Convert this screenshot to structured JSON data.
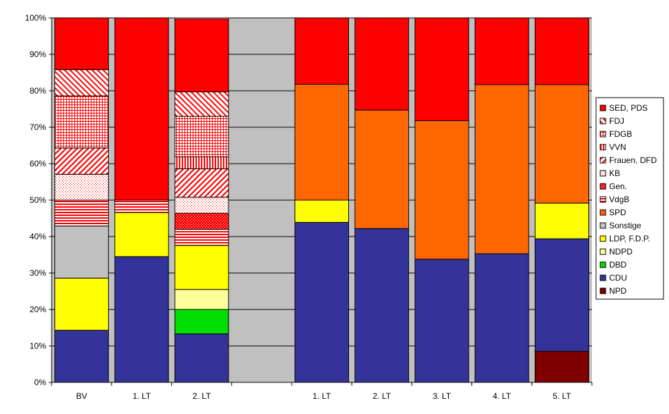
{
  "chart_data": {
    "type": "bar",
    "stacked": true,
    "normalized_percent": true,
    "categories": [
      "BV",
      "1. LT",
      "2. LT",
      "",
      "1. LT",
      "2. LT",
      "3. LT",
      "4. LT",
      "5. LT"
    ],
    "ylim": [
      0,
      100
    ],
    "y_ticks": [
      "0%",
      "10%",
      "20%",
      "30%",
      "40%",
      "50%",
      "60%",
      "70%",
      "80%",
      "90%",
      "100%"
    ],
    "grid": true,
    "plot_background": "#c0c0c0",
    "legend_position": "right",
    "series": [
      {
        "name": "NPD",
        "color": "#800000",
        "pattern": "solid",
        "values": [
          0,
          0,
          0,
          0,
          0,
          0,
          0,
          0,
          8.5
        ]
      },
      {
        "name": "CDU",
        "color": "#333399",
        "pattern": "solid",
        "values": [
          14.3,
          34.5,
          13.3,
          0,
          43.9,
          42.2,
          33.8,
          35.3,
          30.9
        ]
      },
      {
        "name": "DBD",
        "color": "#00dd00",
        "pattern": "solid",
        "values": [
          0,
          0,
          6.7,
          0,
          0,
          0,
          0,
          0,
          0
        ]
      },
      {
        "name": "NDPD",
        "color": "#ffff99",
        "pattern": "solid",
        "values": [
          0,
          0,
          5.5,
          0,
          0,
          0,
          0,
          0,
          0
        ]
      },
      {
        "name": "LDP, F.D.P.",
        "color": "#ffff00",
        "pattern": "solid",
        "values": [
          14.3,
          12.1,
          12.1,
          0,
          6.1,
          0,
          0,
          0,
          9.8
        ]
      },
      {
        "name": "Sonstige",
        "color": "#c0c0c0",
        "pattern": "solid",
        "values": [
          14.3,
          0,
          0,
          0,
          0,
          0,
          0,
          0,
          0
        ]
      },
      {
        "name": "SPD",
        "color": "#ff6600",
        "pattern": "solid",
        "values": [
          0,
          0,
          0,
          0,
          31.8,
          32.5,
          38.0,
          46.4,
          32.5
        ]
      },
      {
        "name": "VdgB",
        "color": "#ff0000",
        "pattern": "hlines",
        "values": [
          7.1,
          3.4,
          4.4,
          0,
          0,
          0,
          0,
          0,
          0
        ]
      },
      {
        "name": "Gen.",
        "color": "#ff0000",
        "pattern": "dots-dense",
        "values": [
          0,
          0,
          4.4,
          0,
          0,
          0,
          0,
          0,
          0
        ]
      },
      {
        "name": "KB",
        "color": "#ff0000",
        "pattern": "dots-sparse",
        "values": [
          7.1,
          0,
          4.4,
          0,
          0,
          0,
          0,
          0,
          0
        ]
      },
      {
        "name": "Frauen, DFD",
        "color": "#ff0000",
        "pattern": "diag-up",
        "values": [
          7.2,
          0,
          7.8,
          0,
          0,
          0,
          0,
          0,
          0
        ]
      },
      {
        "name": "VVN",
        "color": "#ff0000",
        "pattern": "vlines",
        "values": [
          0,
          0,
          3.3,
          0,
          0,
          0,
          0,
          0,
          0
        ]
      },
      {
        "name": "FDGB",
        "color": "#ff0000",
        "pattern": "grid",
        "values": [
          14.3,
          0,
          11.1,
          0,
          0,
          0,
          0,
          0,
          0
        ]
      },
      {
        "name": "FDJ",
        "color": "#ff0000",
        "pattern": "diag-down",
        "values": [
          7.2,
          0,
          6.7,
          0,
          0,
          0,
          0,
          0,
          0
        ]
      },
      {
        "name": "SED, PDS",
        "color": "#ff0000",
        "pattern": "solid",
        "values": [
          14.2,
          50.0,
          20.1,
          0,
          18.2,
          25.3,
          28.2,
          18.3,
          18.3
        ]
      }
    ],
    "gap_column": {
      "index": 3,
      "color": "#c0c0c0"
    },
    "legend_order": [
      "SED, PDS",
      "FDJ",
      "FDGB",
      "VVN",
      "Frauen, DFD",
      "KB",
      "Gen.",
      "VdgB",
      "SPD",
      "Sonstige",
      "LDP, F.D.P.",
      "NDPD",
      "DBD",
      "CDU",
      "NPD"
    ]
  }
}
